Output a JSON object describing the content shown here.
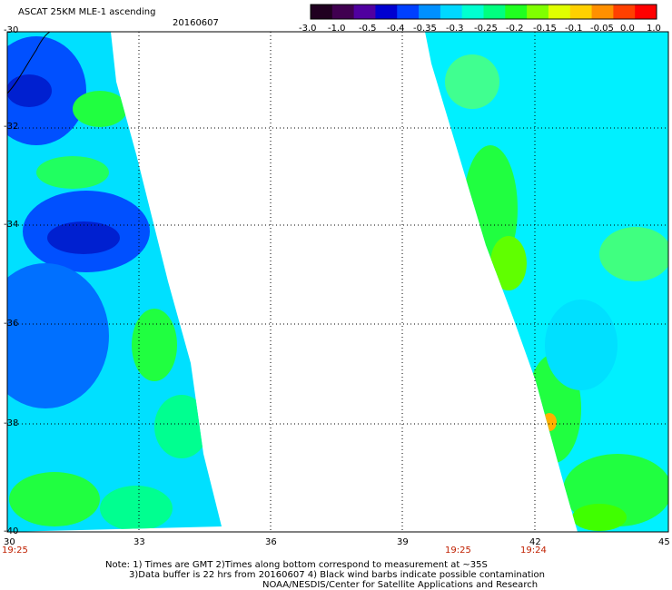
{
  "header": {
    "title": "ASCAT 25KM MLE-1 ascending",
    "date": "20160607"
  },
  "colorbar": {
    "labels": [
      "-3.0",
      "-1.0",
      "-0.5",
      "-0.4",
      "-0.35",
      "-0.3",
      "-0.25",
      "-0.2",
      "-0.15",
      "-0.1",
      "-0.05",
      "0.0",
      "1.0"
    ],
    "colors": [
      "#200020",
      "#400050",
      "#5000a0",
      "#0000d0",
      "#0040ff",
      "#0090ff",
      "#00d8ff",
      "#00ffd0",
      "#00ff80",
      "#20ff20",
      "#80ff00",
      "#e0ff00",
      "#ffd000",
      "#ff9000",
      "#ff4000",
      "#ff0000"
    ]
  },
  "axes": {
    "y_labels": [
      "-30",
      "-32",
      "-34",
      "-36",
      "-38",
      "-40"
    ],
    "x_labels": [
      "30",
      "33",
      "36",
      "39",
      "42",
      "45"
    ]
  },
  "times": {
    "left": "19:25",
    "mid": "19:25",
    "right": "19:24"
  },
  "notes": {
    "line1": "Note: 1) Times are GMT 2)Times along bottom correspond to measurement at ~35S",
    "line2": "3)Data buffer is 22 hrs from 20160607 4) Black wind barbs indicate possible contamination",
    "line3": "NOAA/NESDIS/Center for Satellite Applications and Research"
  }
}
